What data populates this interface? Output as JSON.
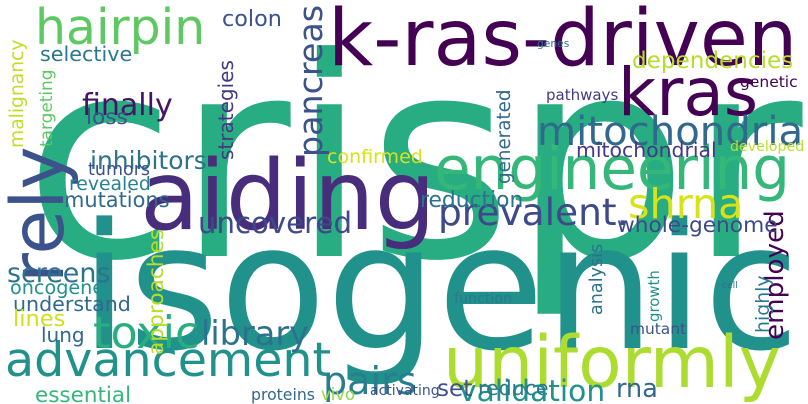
{
  "colors": {
    "dark_purple": "#440154",
    "indigo": "#472d7b",
    "blue_purple": "#3b528b",
    "steel_blue": "#2c728e",
    "teal": "#21918c",
    "sea_green": "#28ae80",
    "green": "#5ec962",
    "lime": "#addc30",
    "yellow": "#fde725"
  },
  "words": [
    {
      "text": "crispr",
      "color": "#27ad81"
    },
    {
      "text": "isogenic",
      "color": "#21918c"
    },
    {
      "text": "k-ras-driven",
      "color": "#440154"
    },
    {
      "text": "aiding",
      "color": "#472d7b"
    },
    {
      "text": "engineering",
      "color": "#35b779"
    },
    {
      "text": "uniformly",
      "color": "#addc30"
    },
    {
      "text": "advancement",
      "color": "#21918c"
    },
    {
      "text": "hairpin",
      "color": "#5ec962"
    },
    {
      "text": "kras",
      "color": "#440154"
    },
    {
      "text": "mitochondria",
      "color": "#31688e"
    },
    {
      "text": "rely",
      "color": "#3b528b"
    },
    {
      "text": "prevalent.",
      "color": "#3e4989"
    },
    {
      "text": "shrna",
      "color": "#d8e219"
    },
    {
      "text": "dependencies",
      "color": "#b5de2b"
    },
    {
      "text": "pancreas",
      "color": "#3b528b"
    },
    {
      "text": "uncovered",
      "color": "#3e4989"
    },
    {
      "text": "toxic",
      "color": "#29af7f"
    },
    {
      "text": "library",
      "color": "#2c728e"
    },
    {
      "text": "pairs",
      "color": "#287d8e"
    },
    {
      "text": "validation",
      "color": "#21918c"
    },
    {
      "text": "screens",
      "color": "#2c728e"
    },
    {
      "text": "employed",
      "color": "#440154"
    },
    {
      "text": "whole-genome",
      "color": "#3e4989"
    },
    {
      "text": "colon",
      "color": "#3b528b"
    },
    {
      "text": "selective",
      "color": "#2a788e"
    },
    {
      "text": "finally",
      "color": "#471365"
    },
    {
      "text": "loss",
      "color": "#3b528b"
    },
    {
      "text": "inhibitors",
      "color": "#2c728e"
    },
    {
      "text": "tumors",
      "color": "#3b528b"
    },
    {
      "text": "revealed",
      "color": "#26828e"
    },
    {
      "text": "mutations",
      "color": "#31688e"
    },
    {
      "text": "confirmed",
      "color": "#d8e219"
    },
    {
      "text": "mitochondrial",
      "color": "#443983"
    },
    {
      "text": "developed",
      "color": "#bddf26"
    },
    {
      "text": "reduction",
      "color": "#2c728e"
    },
    {
      "text": "oncogene",
      "color": "#21918c"
    },
    {
      "text": "understand",
      "color": "#31688e"
    },
    {
      "text": "lines",
      "color": "#d0e11c"
    },
    {
      "text": "lung",
      "color": "#31688e"
    },
    {
      "text": "set",
      "color": "#3b528b"
    },
    {
      "text": "reduce",
      "color": "#2a788e"
    },
    {
      "text": "rna",
      "color": "#31688e"
    },
    {
      "text": "essential",
      "color": "#35b779"
    },
    {
      "text": "proteins",
      "color": "#31688e"
    },
    {
      "text": "vivo",
      "color": "#8fd744"
    },
    {
      "text": "activating",
      "color": "#3b528b"
    },
    {
      "text": "function",
      "color": "#2a788e"
    },
    {
      "text": "mutant",
      "color": "#3b528b"
    },
    {
      "text": "pathways",
      "color": "#443983"
    },
    {
      "text": "genetic",
      "color": "#440154"
    },
    {
      "text": "genes",
      "color": "#2c728e"
    },
    {
      "text": "cell",
      "color": "#2c728e"
    },
    {
      "text": "malignancy",
      "color": "#bddf26"
    },
    {
      "text": "targeting",
      "color": "#5ec962"
    },
    {
      "text": "strategies",
      "color": "#443983"
    },
    {
      "text": "approaches",
      "color": "#b5de2b"
    },
    {
      "text": "generated",
      "color": "#31688e"
    },
    {
      "text": "analysis",
      "color": "#2c728e"
    },
    {
      "text": "growth",
      "color": "#21918c"
    },
    {
      "text": "highly",
      "color": "#2a788e"
    }
  ]
}
